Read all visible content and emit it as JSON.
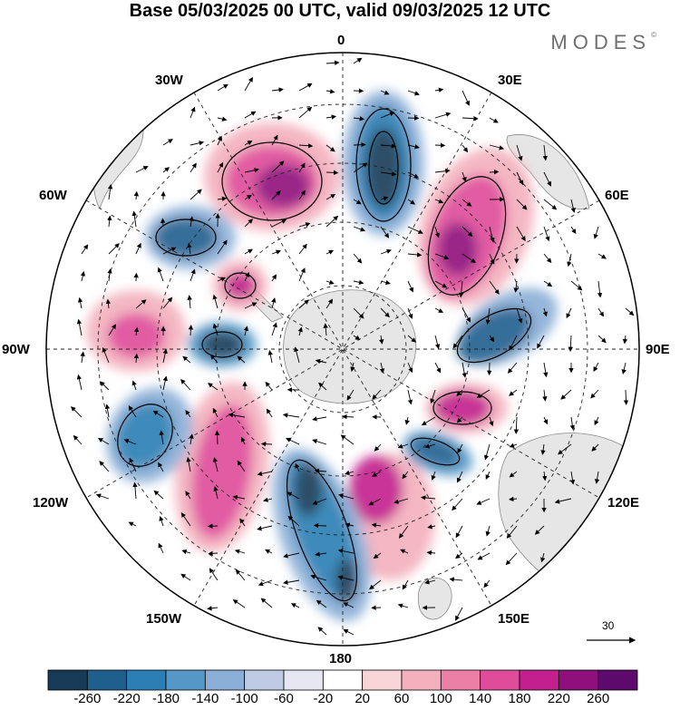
{
  "title": "Base 05/03/2025 00 UTC, valid 09/03/2025 12 UTC",
  "brand": "MODES",
  "brand_mark": "©",
  "longitude_labels": {
    "lon0": "0",
    "lon30e": "30E",
    "lon60e": "60E",
    "lon90e": "90E",
    "lon120e": "120E",
    "lon150e": "150E",
    "lon180": "180",
    "lon150w": "150W",
    "lon120w": "120W",
    "lon90w": "90W",
    "lon60w": "60W",
    "lon30w": "30W"
  },
  "vector_scale_label": "30",
  "colorbar": {
    "tick_labels": [
      "-260",
      "-220",
      "-180",
      "-140",
      "-100",
      "-60",
      "-20",
      "20",
      "60",
      "100",
      "140",
      "180",
      "220",
      "260"
    ],
    "colors": [
      "#173a57",
      "#1f5f8e",
      "#2b7fb4",
      "#5598c8",
      "#8aaed6",
      "#bfcbe4",
      "#e7e7f2",
      "#ffffff",
      "#f9d5d7",
      "#f3b0bd",
      "#ec7fa6",
      "#df4c99",
      "#c2208c",
      "#8f0f7c",
      "#5c0a6b"
    ]
  },
  "anomaly_centers": [
    {
      "name": "anomaly-positive-1",
      "value": 220
    },
    {
      "name": "anomaly-negative-1",
      "value": -260
    },
    {
      "name": "anomaly-positive-2",
      "value": 200
    },
    {
      "name": "anomaly-negative-2",
      "value": -200
    },
    {
      "name": "anomaly-positive-3",
      "value": 180
    },
    {
      "name": "anomaly-negative-3",
      "value": -160
    },
    {
      "name": "anomaly-positive-4",
      "value": 160
    },
    {
      "name": "anomaly-negative-4",
      "value": -240
    },
    {
      "name": "anomaly-positive-5",
      "value": 160
    },
    {
      "name": "anomaly-negative-5",
      "value": -180
    },
    {
      "name": "anomaly-positive-6",
      "value": 140
    },
    {
      "name": "anomaly-negative-6",
      "value": -200
    },
    {
      "name": "anomaly-positive-7",
      "value": 180
    },
    {
      "name": "anomaly-negative-7",
      "value": -180
    }
  ]
}
